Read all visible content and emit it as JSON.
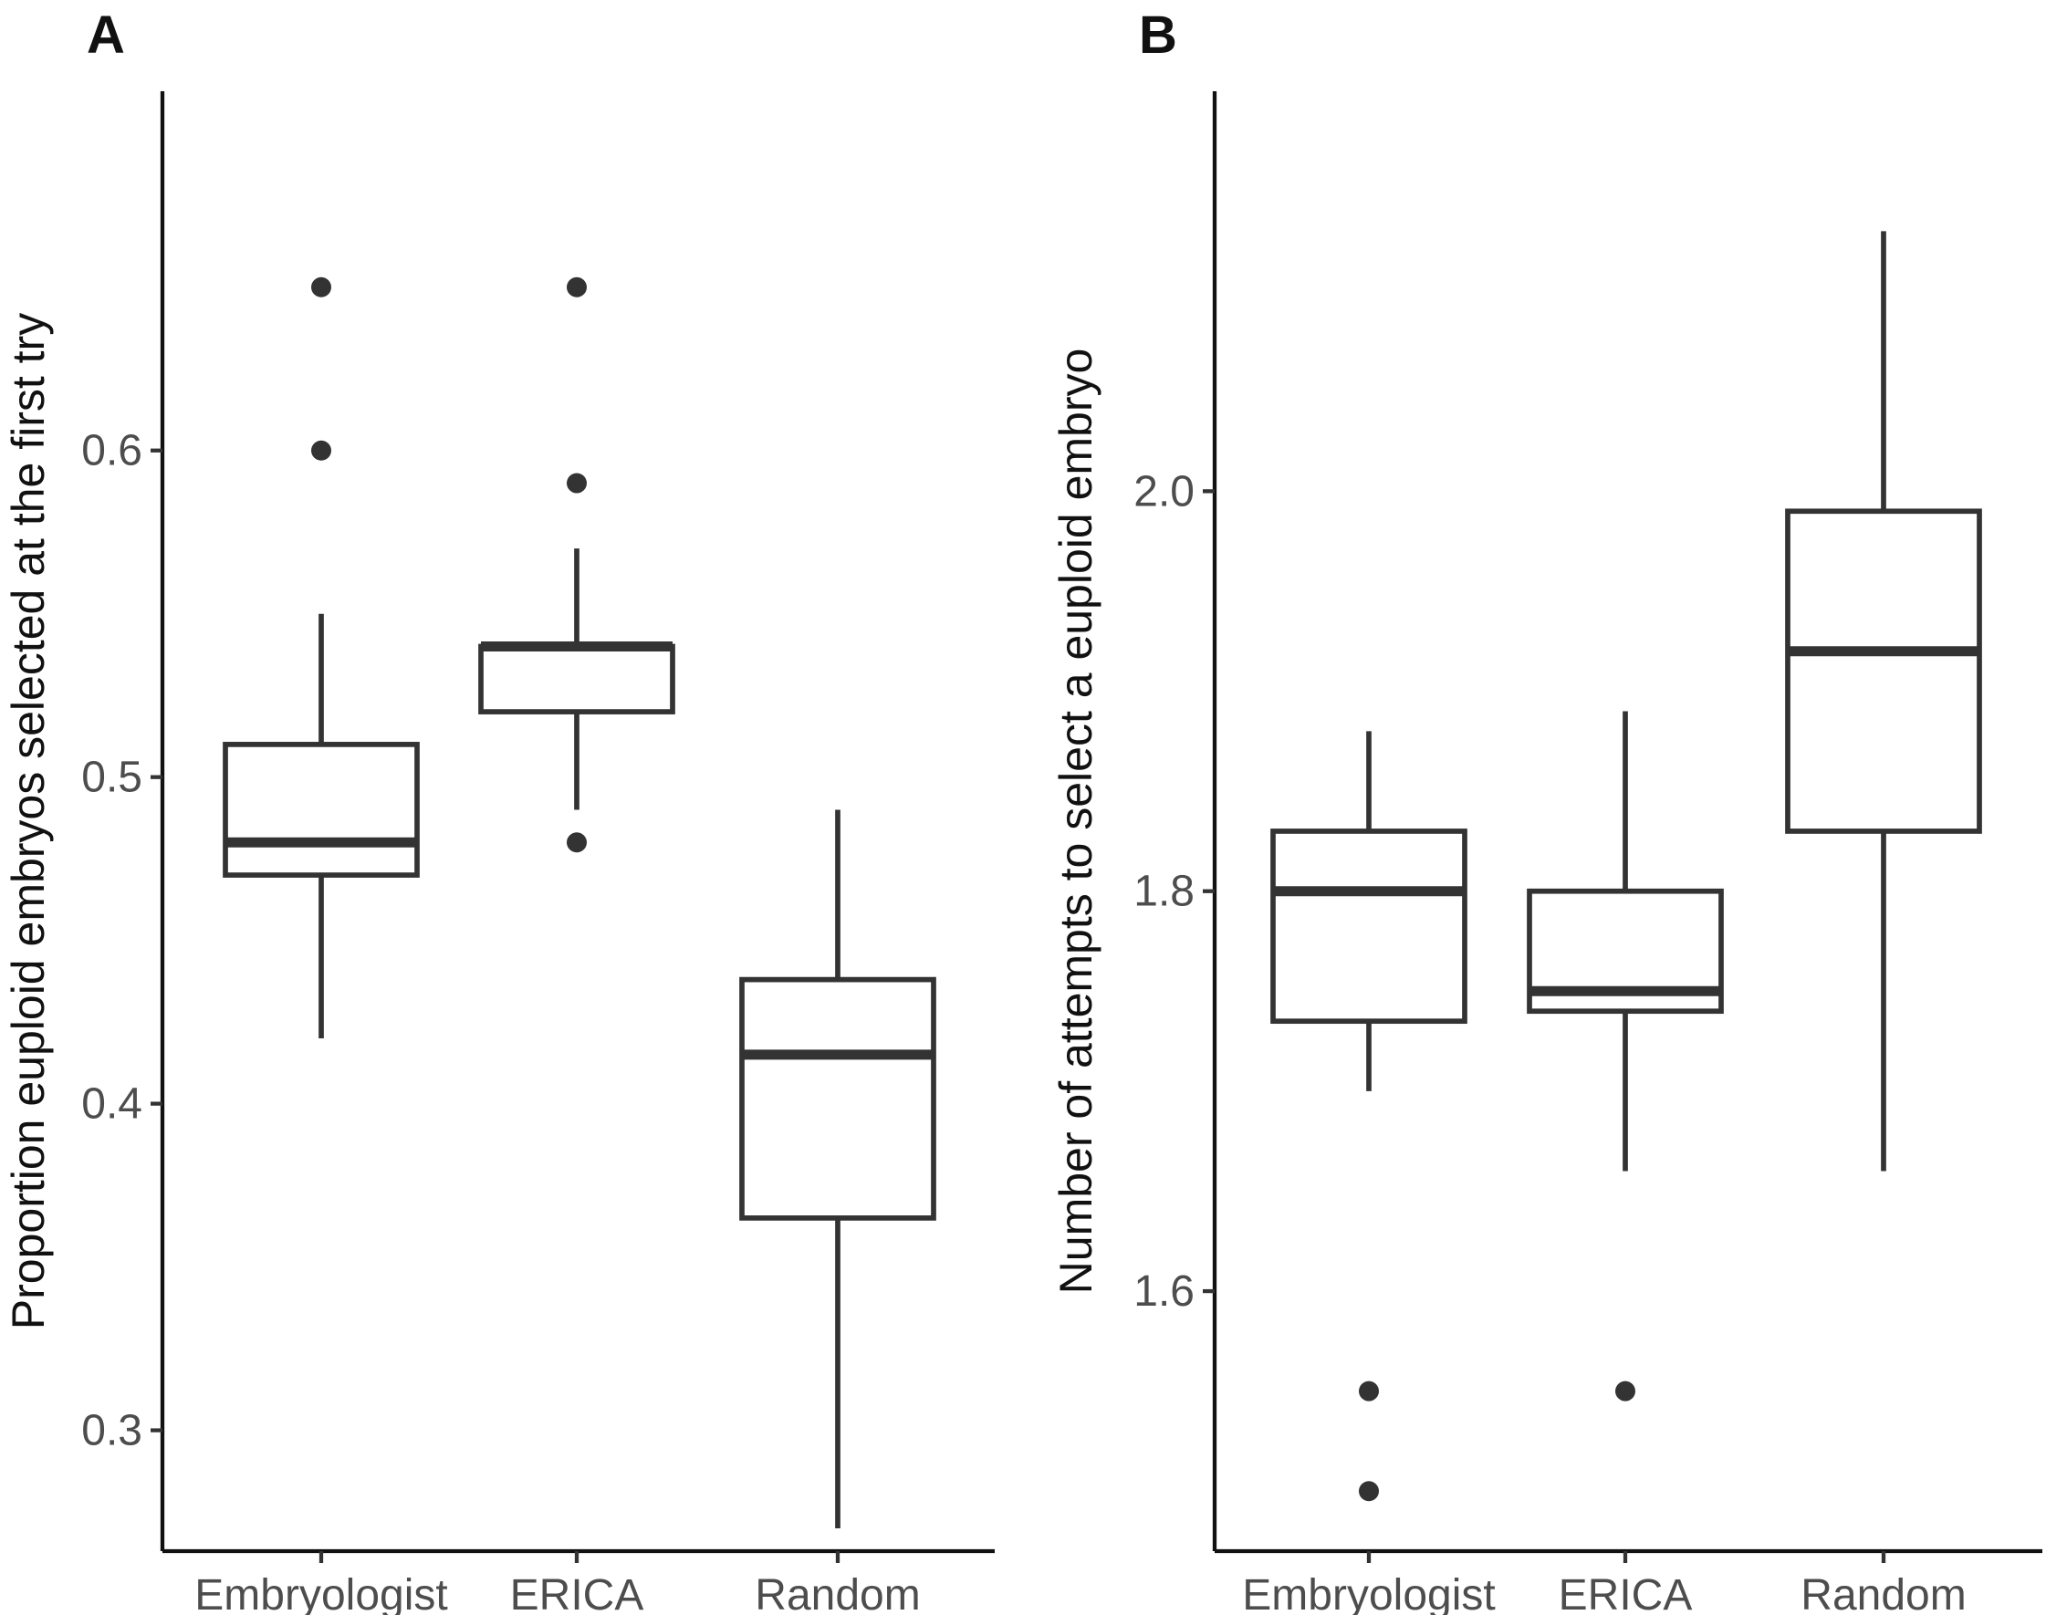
{
  "chart_data": [
    {
      "panel": "A",
      "type": "boxplot",
      "categories": [
        "Embryologist",
        "ERICA",
        "Random"
      ],
      "ylabel": "Proportion euploid embryos selected at the first try",
      "xlabel": "",
      "ylim": [
        0.263,
        0.71
      ],
      "yticks": [
        0.3,
        0.4,
        0.5,
        0.6
      ],
      "ytick_labels": [
        "0.3",
        "0.4",
        "0.5",
        "0.6"
      ],
      "boxes": [
        {
          "category": "Embryologist",
          "whisker_low": 0.42,
          "q1": 0.47,
          "median": 0.48,
          "q3": 0.51,
          "whisker_high": 0.55,
          "outliers": [
            0.6,
            0.65
          ]
        },
        {
          "category": "ERICA",
          "whisker_low": 0.49,
          "q1": 0.52,
          "median": 0.54,
          "q3": 0.54,
          "whisker_high": 0.57,
          "outliers": [
            0.48,
            0.59,
            0.65
          ]
        },
        {
          "category": "Random",
          "whisker_low": 0.27,
          "q1": 0.365,
          "median": 0.415,
          "q3": 0.438,
          "whisker_high": 0.49,
          "outliers": []
        }
      ]
    },
    {
      "panel": "B",
      "type": "boxplot",
      "categories": [
        "Embryologist",
        "ERICA",
        "Random"
      ],
      "ylabel": "Number of attempts to select a euploid embryo",
      "xlabel": "",
      "ylim": [
        1.47,
        2.2
      ],
      "yticks": [
        1.6,
        1.8,
        2.0
      ],
      "ytick_labels": [
        "1.6",
        "1.8",
        "2.0"
      ],
      "boxes": [
        {
          "category": "Embryologist",
          "whisker_low": 1.7,
          "q1": 1.735,
          "median": 1.8,
          "q3": 1.83,
          "whisker_high": 1.88,
          "outliers": [
            1.55,
            1.5
          ]
        },
        {
          "category": "ERICA",
          "whisker_low": 1.66,
          "q1": 1.74,
          "median": 1.75,
          "q3": 1.8,
          "whisker_high": 1.89,
          "outliers": [
            1.55
          ]
        },
        {
          "category": "Random",
          "whisker_low": 1.66,
          "q1": 1.83,
          "median": 1.92,
          "q3": 1.99,
          "whisker_high": 2.13,
          "outliers": []
        }
      ]
    }
  ]
}
